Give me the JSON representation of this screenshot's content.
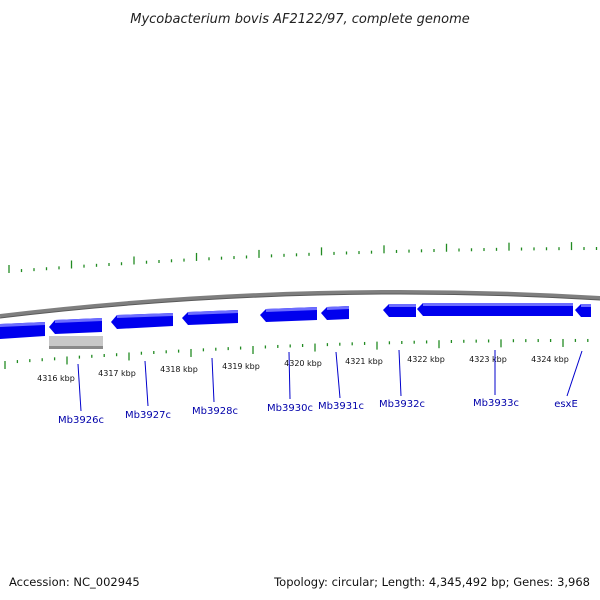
{
  "title": "Mycobacterium bovis AF2122/97, complete genome",
  "footer": {
    "accession": "Accession: NC_002945",
    "summary": "Topology: circular; Length: 4,345,492 bp; Genes: 3,968"
  },
  "colors": {
    "backbone": "#7f7f7f",
    "gene_fill": "#0000ee",
    "gene_highlight": "#6d6dff",
    "selection": "#bfbfbf",
    "ticks": "#228b22",
    "label": "#0000aa"
  },
  "scale": {
    "unit": "kbp",
    "ticks_kbp": [
      4316,
      4317,
      4318,
      4319,
      4320,
      4321,
      4322,
      4323,
      4324
    ],
    "tick_labels": [
      "4316 kbp",
      "4317 kbp",
      "4318 kbp",
      "4319 kbp",
      "4320 kbp",
      "4321 kbp",
      "4322 kbp",
      "4323 kbp",
      "4324 kbp"
    ]
  },
  "genes": [
    {
      "name": "Mb3926c",
      "strand": "-"
    },
    {
      "name": "Mb3927c",
      "strand": "-"
    },
    {
      "name": "Mb3928c",
      "strand": "-"
    },
    {
      "name": "Mb3930c",
      "strand": "-"
    },
    {
      "name": "Mb3931c",
      "strand": "-"
    },
    {
      "name": "Mb3932c",
      "strand": "-"
    },
    {
      "name": "Mb3933c",
      "strand": "-"
    },
    {
      "name": "esxE",
      "strand": "-"
    }
  ]
}
